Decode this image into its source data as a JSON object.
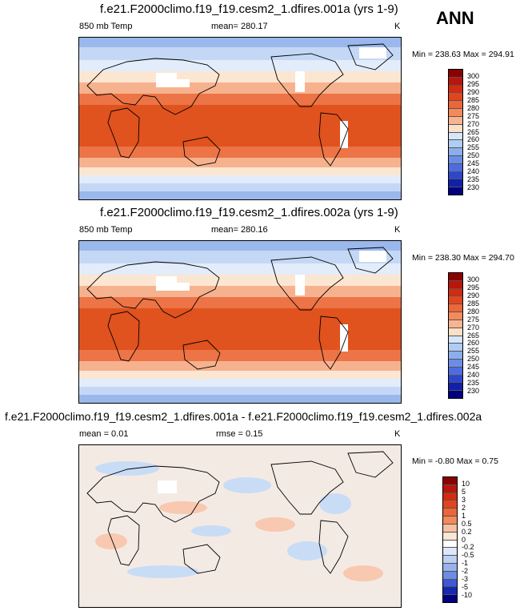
{
  "season": "ANN",
  "panels": [
    {
      "title": "f.e21.F2000climo.f19_f19.cesm2_1.dfires.001a (yrs 1-9)",
      "left_label": "850 mb Temp",
      "center_label": "mean= 280.17",
      "unit": "K",
      "minmax": "Min = 238.63 Max = 294.91",
      "colorbar": {
        "labels": [
          "300",
          "295",
          "290",
          "285",
          "280",
          "275",
          "270",
          "265",
          "260",
          "255",
          "250",
          "245",
          "240",
          "235",
          "230"
        ],
        "colors": [
          "#8b0000",
          "#b8160c",
          "#d42a10",
          "#e2451e",
          "#ec6638",
          "#f48a5a",
          "#f8b490",
          "#fbe0c8",
          "#d6e6fa",
          "#b0ccf4",
          "#8caeec",
          "#6c8de6",
          "#4e6ce0",
          "#2e46cc",
          "#1020a8",
          "#000080"
        ]
      }
    },
    {
      "title": "f.e21.F2000climo.f19_f19.cesm2_1.dfires.002a (yrs 1-9)",
      "left_label": "850 mb Temp",
      "center_label": "mean= 280.16",
      "unit": "K",
      "minmax": "Min = 238.30 Max = 294.70",
      "colorbar": {
        "labels": [
          "300",
          "295",
          "290",
          "285",
          "280",
          "275",
          "270",
          "265",
          "260",
          "255",
          "250",
          "245",
          "240",
          "235",
          "230"
        ],
        "colors": [
          "#8b0000",
          "#b8160c",
          "#d42a10",
          "#e2451e",
          "#ec6638",
          "#f48a5a",
          "#f8b490",
          "#fbe0c8",
          "#d6e6fa",
          "#b0ccf4",
          "#8caeec",
          "#6c8de6",
          "#4e6ce0",
          "#2e46cc",
          "#1020a8",
          "#000080"
        ]
      }
    },
    {
      "title": "f.e21.F2000climo.f19_f19.cesm2_1.dfires.001a - f.e21.F2000climo.f19_f19.cesm2_1.dfires.002a",
      "left_label": "mean =   0.01",
      "center_label": "rmse =   0.15",
      "unit": "K",
      "minmax": "Min =  -0.80 Max =   0.75",
      "colorbar": {
        "labels": [
          "10",
          "5",
          "3",
          "2",
          "1",
          "0.5",
          "0.2",
          "0",
          "-0.2",
          "-0.5",
          "-1",
          "-2",
          "-3",
          "-5",
          "-10"
        ],
        "colors": [
          "#8b0000",
          "#b8160c",
          "#d42a10",
          "#e2451e",
          "#ec6638",
          "#f48a5a",
          "#f8c0a0",
          "#fce6d6",
          "#ffffff",
          "#dce8fa",
          "#bcd0f4",
          "#98b2ec",
          "#6c8de6",
          "#3e58d6",
          "#1628b0",
          "#000080"
        ]
      }
    }
  ],
  "colors": {
    "zone_polar": "#9ab8ec",
    "zone_cold": "#c4d8f6",
    "zone_cool": "#e2ecfa",
    "zone_mild": "#fbe6d2",
    "zone_warm": "#f6b28e",
    "zone_hot": "#ec7446",
    "zone_tropics": "#e0521e",
    "diff_base": "#f4eae4",
    "diff_pos": "#f8c8b0",
    "diff_neg": "#c8dcf6",
    "masked": "#ffffff"
  }
}
